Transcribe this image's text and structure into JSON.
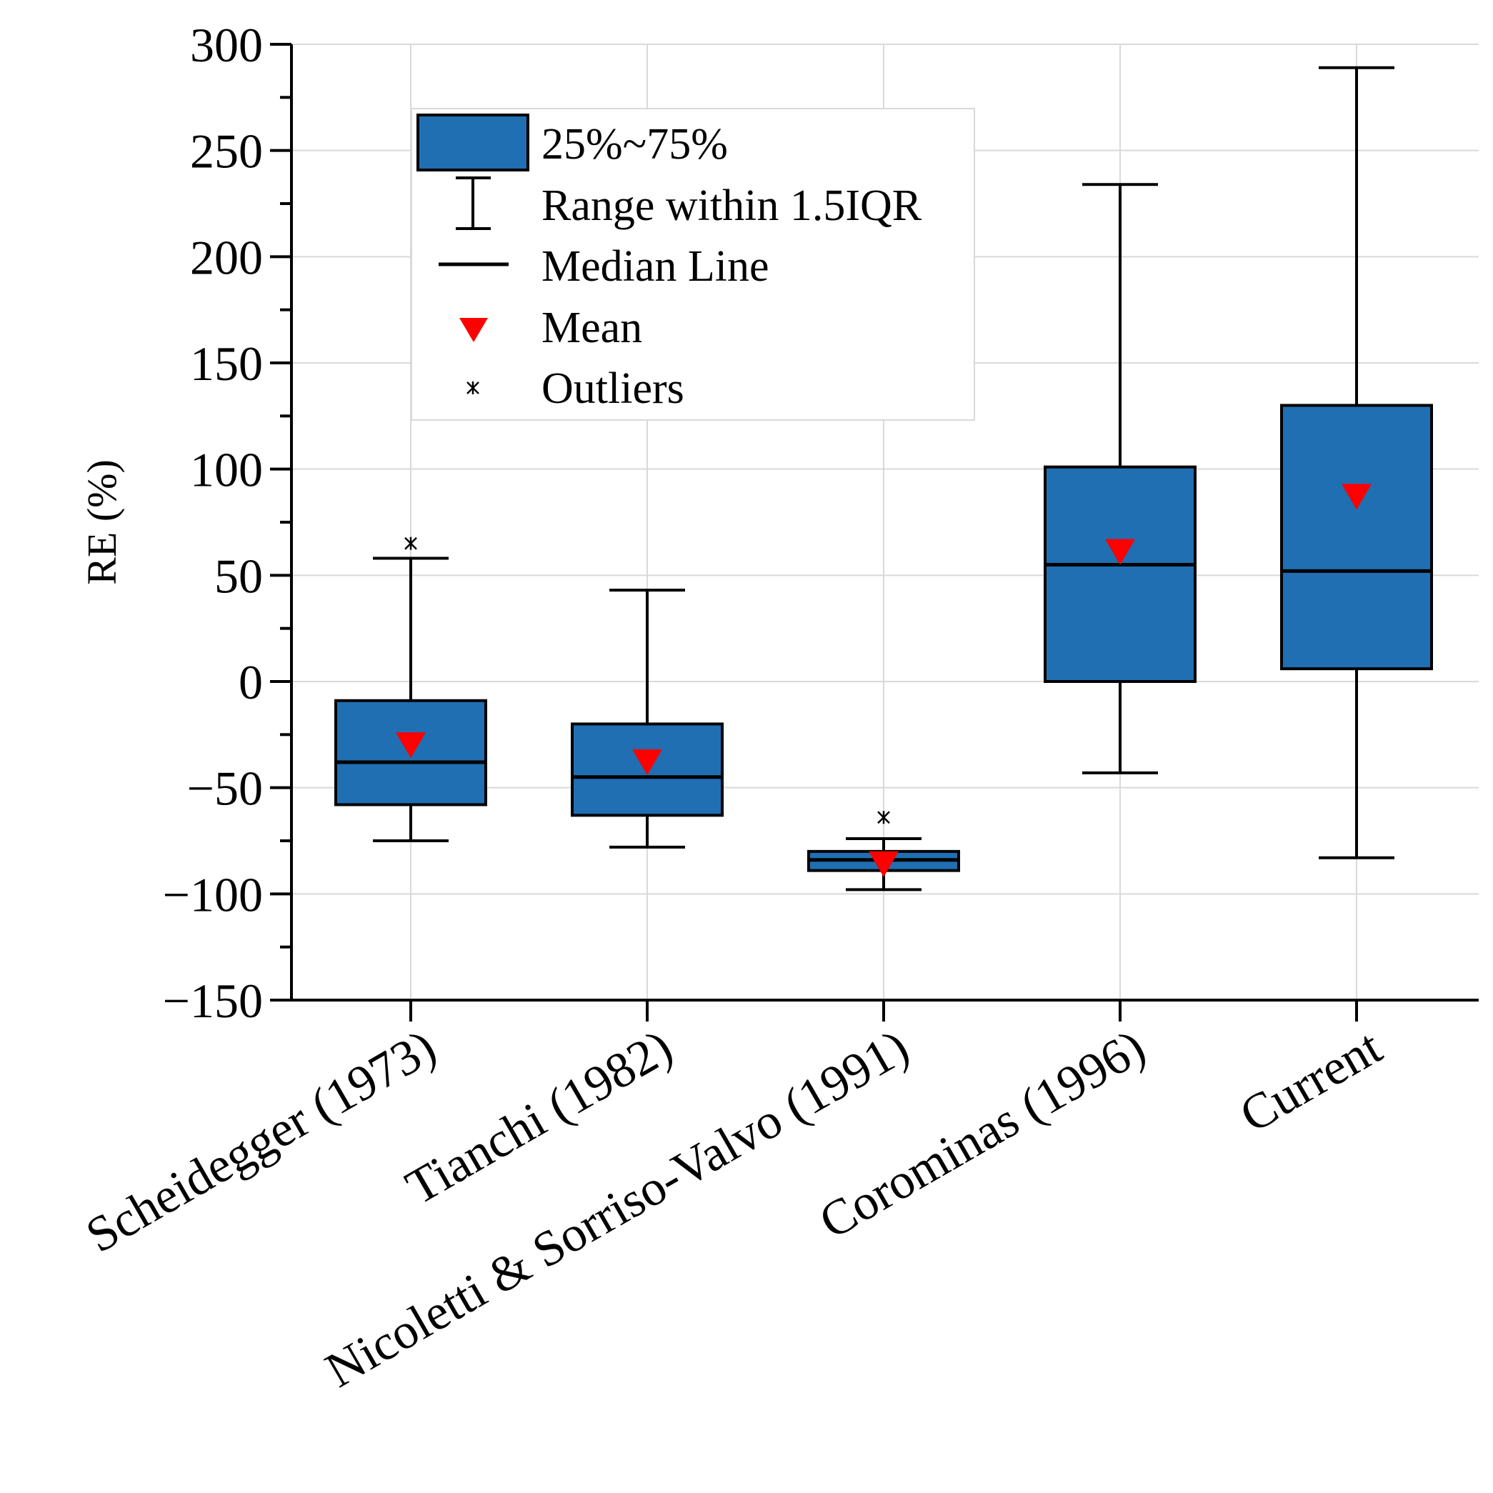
{
  "chart_data": {
    "type": "box",
    "title": "",
    "xlabel": "",
    "ylabel": "RE (%)",
    "ylim": [
      -150,
      300
    ],
    "yticks": [
      300,
      250,
      200,
      150,
      100,
      50,
      0,
      -50,
      -100,
      -150
    ],
    "ytick_labels": [
      "300",
      "250",
      "200",
      "150",
      "100",
      "50",
      "0",
      "−50",
      "−100",
      "−150"
    ],
    "grid": true,
    "colors": {
      "box_fill": "#1f6fb2",
      "mean_marker": "#ff0000",
      "grid": "#d9d9d9"
    },
    "legend": {
      "placement": "top-center",
      "entries": [
        {
          "key": "box",
          "label": "25%~75%"
        },
        {
          "key": "range",
          "label": "Range within 1.5IQR"
        },
        {
          "key": "median",
          "label": "Median Line"
        },
        {
          "key": "mean",
          "label": "Mean"
        },
        {
          "key": "outliers",
          "label": "Outliers"
        }
      ]
    },
    "categories": [
      "Scheidegger (1973)",
      "Tianchi (1982)",
      "Nicoletti & Sorriso-Valvo (1991)",
      "Corominas (1996)",
      "Current"
    ],
    "series": [
      {
        "name": "Scheidegger (1973)",
        "whisker_low": -75,
        "q1": -58,
        "median": -38,
        "q3": -9,
        "whisker_high": 58,
        "mean": -30,
        "outliers": [
          65
        ]
      },
      {
        "name": "Tianchi (1982)",
        "whisker_low": -78,
        "q1": -63,
        "median": -45,
        "q3": -20,
        "whisker_high": 43,
        "mean": -38,
        "outliers": []
      },
      {
        "name": "Nicoletti & Sorriso-Valvo (1991)",
        "whisker_low": -98,
        "q1": -89,
        "median": -84,
        "q3": -80,
        "whisker_high": -74,
        "mean": -86,
        "outliers": [
          -64
        ]
      },
      {
        "name": "Corominas (1996)",
        "whisker_low": -43,
        "q1": 0,
        "median": 55,
        "q3": 101,
        "whisker_high": 234,
        "mean": 61,
        "outliers": []
      },
      {
        "name": "Current",
        "whisker_low": -83,
        "q1": 6,
        "median": 52,
        "q3": 130,
        "whisker_high": 289,
        "mean": 87,
        "outliers": []
      }
    ]
  }
}
